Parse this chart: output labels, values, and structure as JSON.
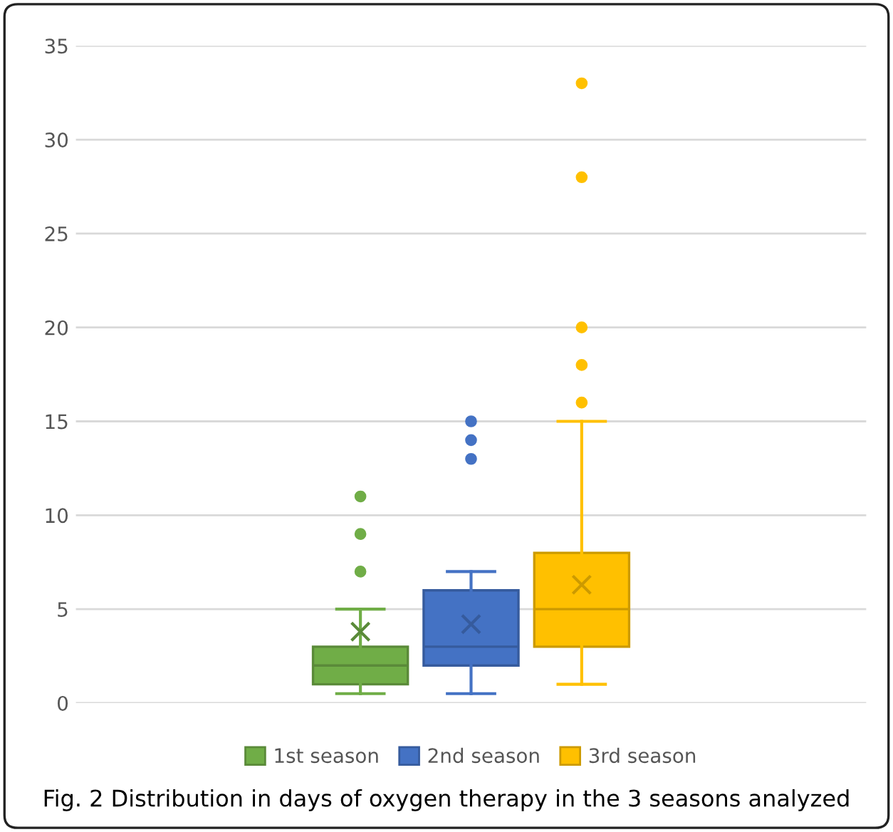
{
  "chart_data": {
    "type": "box",
    "categories": [
      null
    ],
    "series": [
      {
        "name": "1st season",
        "color": "#70ad47",
        "boxes": [
          {
            "low": 0.5,
            "q1": 1,
            "median": 2,
            "q3": 3,
            "high": 5,
            "mean": 3.8,
            "outliers": [
              7,
              9,
              11
            ]
          }
        ]
      },
      {
        "name": "2nd season",
        "color": "#4472c4",
        "boxes": [
          {
            "low": 0.5,
            "q1": 2,
            "median": 3,
            "q3": 6,
            "high": 7,
            "mean": 4.2,
            "outliers": [
              13,
              14,
              15
            ]
          }
        ]
      },
      {
        "name": "3rd season",
        "color": "#ffc000",
        "boxes": [
          {
            "low": 1,
            "q1": 3,
            "median": 5,
            "q3": 8,
            "high": 15,
            "mean": 6.3,
            "outliers": [
              16,
              18,
              20,
              28,
              33
            ]
          }
        ]
      }
    ],
    "ylim": [
      0,
      35
    ],
    "yticks": [
      0,
      5,
      10,
      15,
      20,
      25,
      30,
      35
    ],
    "grid": "y",
    "legend": "bottom",
    "tick_labels": "y",
    "annotations": [
      "Fig. 2 Distribution in days of oxygen therapy in the 3 seasons analyzed"
    ]
  }
}
